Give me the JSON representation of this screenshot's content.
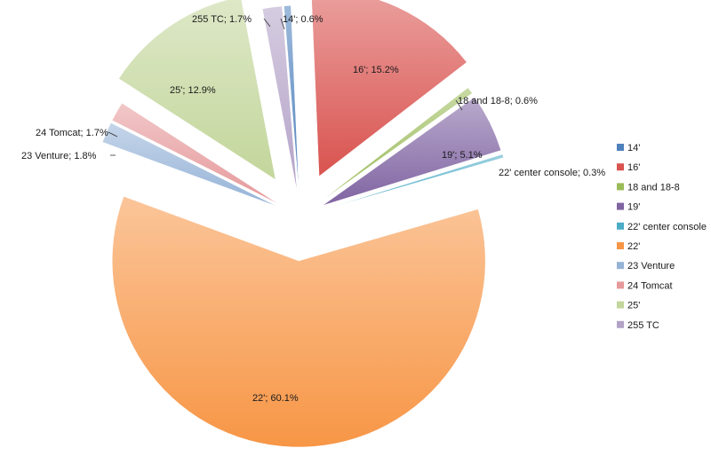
{
  "chart_data": {
    "type": "pie",
    "title": "",
    "slices": [
      {
        "name": "14'",
        "value": 0.6,
        "label": "14'; 0.6%",
        "color": "#4f81bd"
      },
      {
        "name": "16'",
        "value": 15.2,
        "label": "16'; 15.2%",
        "color": "#d9534f"
      },
      {
        "name": "18 and 18-8",
        "value": 0.6,
        "label": "18 and 18-8; 0.6%",
        "color": "#9bbb59"
      },
      {
        "name": "19'",
        "value": 5.1,
        "label": "19'; 5.1%",
        "color": "#8064a2"
      },
      {
        "name": "22' center console",
        "value": 0.3,
        "label": "22' center console; 0.3%",
        "color": "#4bacc6"
      },
      {
        "name": "22'",
        "value": 60.1,
        "label": "22'; 60.1%",
        "color": "#f79646"
      },
      {
        "name": "23 Venture",
        "value": 1.8,
        "label": "23 Venture; 1.8%",
        "color": "#95b3d7"
      },
      {
        "name": "24 Tomcat",
        "value": 1.7,
        "label": "24 Tomcat; 1.7%",
        "color": "#e6999b"
      },
      {
        "name": "25'",
        "value": 12.9,
        "label": "25'; 12.9%",
        "color": "#c3d69b"
      },
      {
        "name": "255 TC",
        "value": 1.7,
        "label": "255 TC; 1.7%",
        "color": "#b3a2c7"
      }
    ],
    "legend_position": "right"
  }
}
